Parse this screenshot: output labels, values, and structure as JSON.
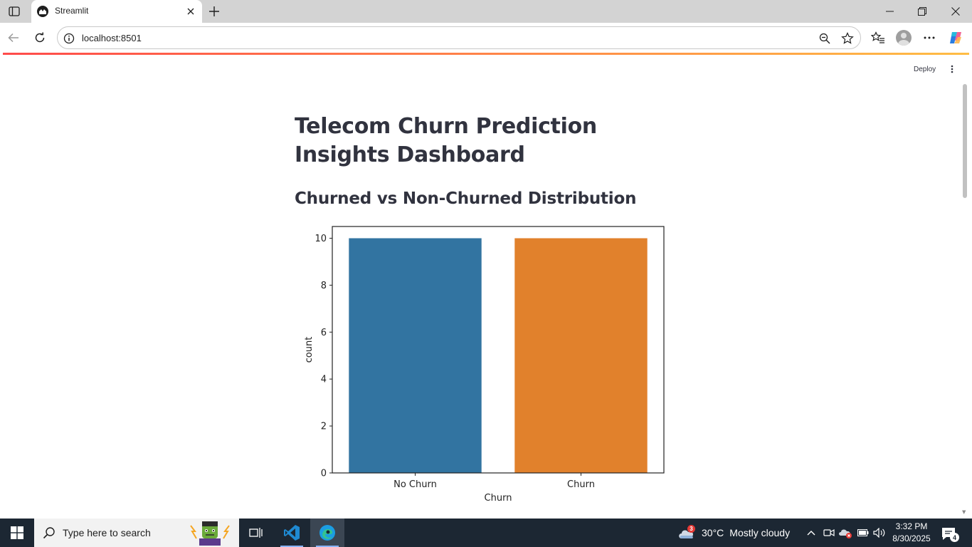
{
  "browser": {
    "tab_title": "Streamlit",
    "url": "localhost:8501"
  },
  "app": {
    "deploy_label": "Deploy",
    "title": "Telecom Churn Prediction Insights Dashboard",
    "section_title": "Churned vs Non-Churned Distribution"
  },
  "chart_data": {
    "type": "bar",
    "title": "",
    "categories": [
      "No Churn",
      "Churn"
    ],
    "values": [
      10,
      10
    ],
    "colors": [
      "#3274a1",
      "#e1812c"
    ],
    "xlabel": "Churn",
    "ylabel": "count",
    "ylim": [
      0,
      10.5
    ],
    "yticks": [
      0,
      2,
      4,
      6,
      8,
      10
    ],
    "grid": false
  },
  "taskbar": {
    "search_placeholder": "Type here to search",
    "weather_badge": "3",
    "weather_temp": "30°C",
    "weather_condition": "Mostly cloudy",
    "time": "3:32 PM",
    "date": "8/30/2025",
    "notification_count": "4"
  }
}
